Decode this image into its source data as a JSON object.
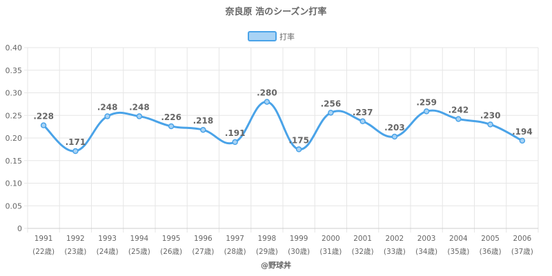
{
  "chart_data": {
    "type": "line",
    "title": "奈良原 浩のシーズン打率",
    "categories": [
      "1991",
      "1992",
      "1993",
      "1994",
      "1995",
      "1996",
      "1997",
      "1998",
      "1999",
      "2000",
      "2001",
      "2002",
      "2003",
      "2004",
      "2005",
      "2006"
    ],
    "category_sublabels": [
      "(22歳)",
      "(23歳)",
      "(24歳)",
      "(25歳)",
      "(26歳)",
      "(27歳)",
      "(28歳)",
      "(29歳)",
      "(30歳)",
      "(31歳)",
      "(32歳)",
      "(33歳)",
      "(34歳)",
      "(35歳)",
      "(36歳)",
      "(37歳)"
    ],
    "series": [
      {
        "name": "打率",
        "values": [
          0.228,
          0.171,
          0.248,
          0.248,
          0.226,
          0.218,
          0.191,
          0.28,
          0.175,
          0.256,
          0.237,
          0.203,
          0.259,
          0.242,
          0.23,
          0.194
        ],
        "labels": [
          ".228",
          ".171",
          ".248",
          ".248",
          ".226",
          ".218",
          ".191",
          ".280",
          ".175",
          ".256",
          ".237",
          ".203",
          ".259",
          ".242",
          ".230",
          ".194"
        ]
      }
    ],
    "ylim": [
      0,
      0.4
    ],
    "yticks": [
      0,
      0.05,
      0.1,
      0.15,
      0.2,
      0.25,
      0.3,
      0.35,
      0.4
    ],
    "ytick_labels": [
      "0",
      "0.05",
      "0.10",
      "0.15",
      "0.20",
      "0.25",
      "0.30",
      "0.35",
      "0.40"
    ],
    "grid": true,
    "legend_position": "top-center",
    "colors": {
      "line": "#4aa3e8",
      "fill": "#a8d3f5",
      "grid": "#e6e6e6",
      "text": "#666666"
    }
  },
  "credit": "@野球丼"
}
